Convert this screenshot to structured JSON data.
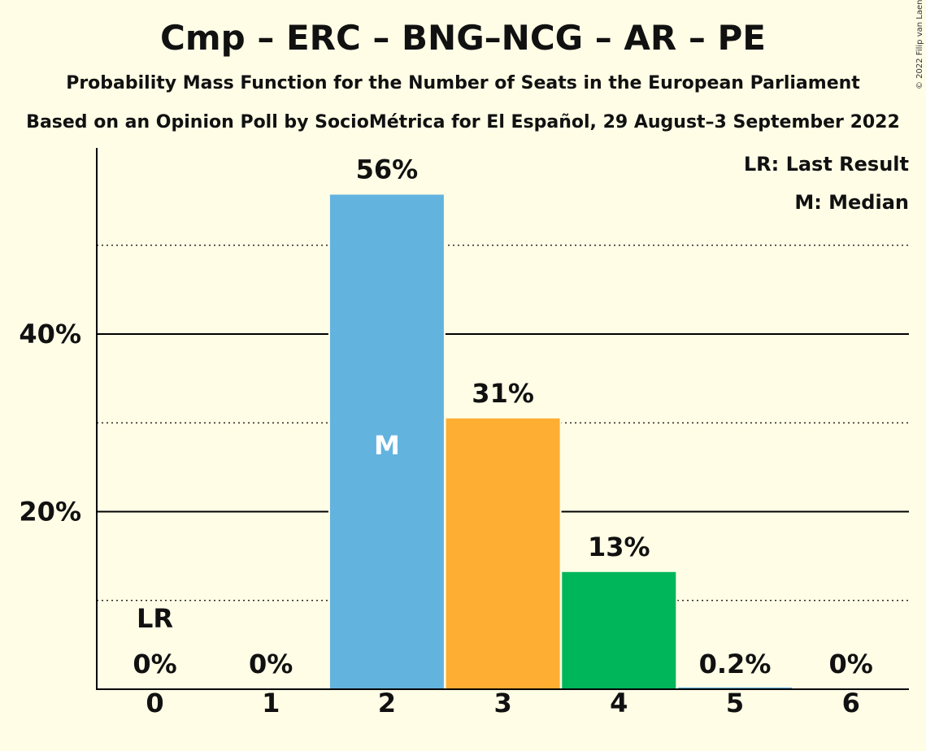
{
  "title": "Cmp – ERC – BNG–NCG – AR – PE",
  "subtitle": "Probability Mass Function for the Number of Seats in the European Parliament",
  "subtitle2": "Based on an Opinion Poll by SocioMétrica for El Español, 29 August–3 September 2022",
  "copyright": "© 2022 Filip van Laenen",
  "legend": {
    "last_result": "LR: Last Result",
    "median": "M: Median"
  },
  "chart_data": {
    "type": "bar",
    "categories": [
      "0",
      "1",
      "2",
      "3",
      "4",
      "5",
      "6"
    ],
    "values": [
      0,
      0,
      55.7,
      30.5,
      13.2,
      0.2,
      0
    ],
    "data_labels": [
      "0%",
      "0%",
      "56%",
      "31%",
      "13%",
      "0.2%",
      "0%"
    ],
    "bar_colors": [
      "#63B3DF",
      "#63B3DF",
      "#63B3DF",
      "#FDAE33",
      "#00B65B",
      "#63B3DF",
      "#63B3DF"
    ],
    "y_ticks": [
      20,
      40
    ],
    "y_tick_labels": [
      "20%",
      "40%"
    ],
    "minor_gridlines": [
      10,
      30,
      50
    ],
    "ylim": [
      0,
      61
    ],
    "last_result_index": 0,
    "last_result_label": "LR",
    "median_index": 2,
    "median_label": "M",
    "legend_position": "top-right"
  }
}
